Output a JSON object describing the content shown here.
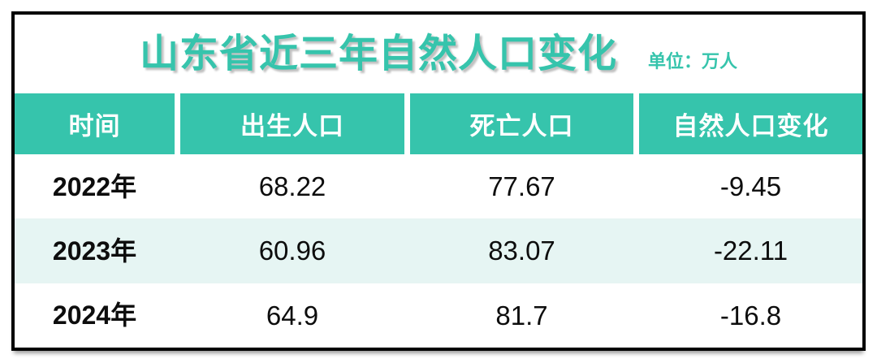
{
  "title": {
    "text": "山东省近三年自然人口变化",
    "unit": "单位：万人"
  },
  "table": {
    "headers": [
      "时间",
      "出生人口",
      "死亡人口",
      "自然人口变化"
    ],
    "rows": [
      [
        "2022年",
        "68.22",
        "77.67",
        "-9.45"
      ],
      [
        "2023年",
        "60.96",
        "83.07",
        "-22.11"
      ],
      [
        "2024年",
        "64.9",
        "81.7",
        "-16.8"
      ]
    ]
  },
  "colors": {
    "accent": "#36C4AC",
    "header_bg": "#36C4AC",
    "header_text": "#FFFFFF",
    "row_alt_bg": "#E6F5F3",
    "body_text": "#0D0D0D",
    "frame_border": "#000000"
  },
  "chart_data": {
    "type": "table",
    "title": "山东省近三年自然人口变化",
    "unit": "万人",
    "columns": [
      "时间",
      "出生人口",
      "死亡人口",
      "自然人口变化"
    ],
    "rows": [
      {
        "时间": "2022年",
        "出生人口": 68.22,
        "死亡人口": 77.67,
        "自然人口变化": -9.45
      },
      {
        "时间": "2023年",
        "出生人口": 60.96,
        "死亡人口": 83.07,
        "自然人口变化": -22.11
      },
      {
        "时间": "2024年",
        "出生人口": 64.9,
        "死亡人口": 81.7,
        "自然人口变化": -16.8
      }
    ]
  }
}
